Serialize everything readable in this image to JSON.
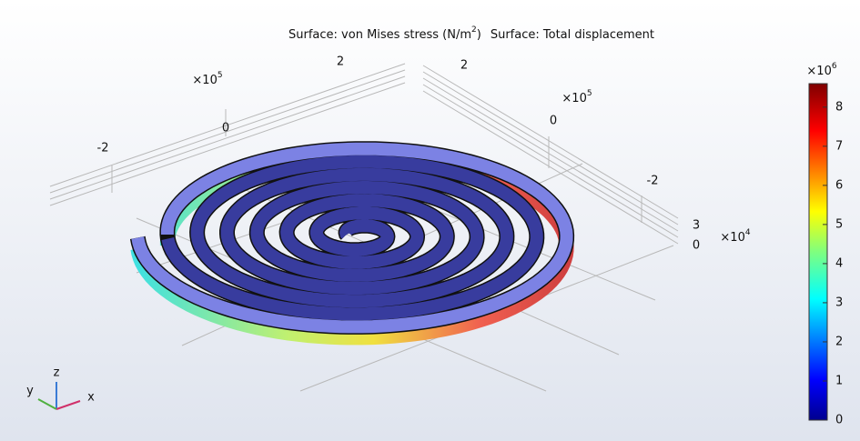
{
  "title": {
    "stress": "Surface: von Mises stress (N/m",
    "stress_exponent": "2",
    "stress_close": ")",
    "displacement": "Surface: Total displacement"
  },
  "x_axis": {
    "multiplier": "×10",
    "exponent": "5",
    "ticks": [
      -2,
      0,
      2
    ]
  },
  "y_axis": {
    "multiplier": "×10",
    "exponent": "5",
    "ticks": [
      2,
      0,
      -2
    ]
  },
  "z_axis": {
    "multiplier": "×10",
    "exponent": "4",
    "ticks": [
      3,
      0
    ]
  },
  "colorbar": {
    "multiplier": "×10",
    "exponent": "6",
    "range": [
      0,
      8.6
    ],
    "ticks": [
      0,
      1,
      2,
      3,
      4,
      5,
      6,
      7,
      8
    ]
  },
  "triad": {
    "x": "x",
    "y": "y",
    "z": "z"
  }
}
